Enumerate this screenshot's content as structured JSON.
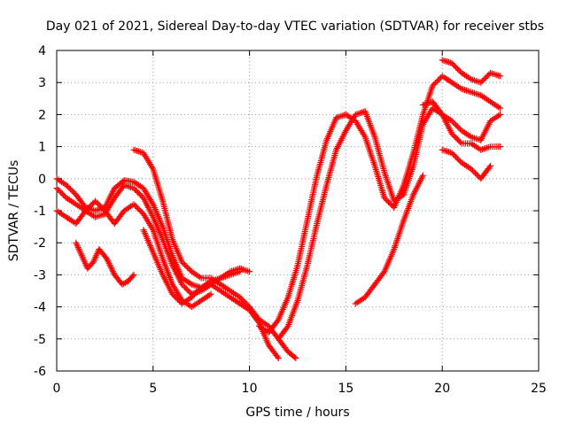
{
  "chart_data": {
    "type": "scatter",
    "title": "Day 021 of 2021, Sidereal Day-to-day VTEC variation (SDTVAR) for receiver stbs",
    "xlabel": "GPS time / hours",
    "ylabel": "SDTVAR / TECUs",
    "xlim": [
      0,
      25
    ],
    "ylim": [
      -6,
      4
    ],
    "xticks": [
      "0",
      "5",
      "10",
      "15",
      "20",
      "25"
    ],
    "yticks": [
      "-6",
      "-5",
      "-4",
      "-3",
      "-2",
      "-1",
      "0",
      "1",
      "2",
      "3",
      "4"
    ],
    "grid": true,
    "marker": "+",
    "color": "#ff0000",
    "series": [
      {
        "x": [
          0,
          0.5,
          1,
          1.5,
          2,
          2.5,
          3,
          3.5,
          4,
          4.5,
          5,
          5.5,
          6,
          6.5,
          7,
          7.5,
          8,
          8.5,
          9,
          9.5
        ],
        "y": [
          0,
          -0.2,
          -0.5,
          -0.9,
          -1.0,
          -0.9,
          -0.3,
          -0.05,
          -0.1,
          -0.3,
          -0.8,
          -1.5,
          -2.4,
          -3.1,
          -3.3,
          -3.4,
          -3.2,
          -3.1,
          -3.0,
          -2.9
        ]
      },
      {
        "x": [
          0,
          0.5,
          1,
          1.5,
          2,
          2.5,
          3,
          3.5,
          4,
          4.5,
          5,
          5.5,
          6,
          6.5,
          7,
          7.5,
          8,
          8.5,
          9,
          9.5,
          10
        ],
        "y": [
          -0.3,
          -0.6,
          -0.8,
          -1.0,
          -1.2,
          -1.1,
          -0.6,
          -0.2,
          -0.3,
          -0.6,
          -1.2,
          -1.9,
          -2.7,
          -3.3,
          -3.6,
          -3.5,
          -3.3,
          -3.1,
          -2.9,
          -2.8,
          -2.9
        ]
      },
      {
        "x": [
          0,
          0.5,
          1,
          1.5,
          2,
          2.5,
          3,
          3.5,
          4,
          4.5,
          5,
          5.5,
          6,
          6.5,
          7,
          7.5,
          8
        ],
        "y": [
          -1.0,
          -1.2,
          -1.4,
          -1.0,
          -0.7,
          -1.0,
          -1.4,
          -1.0,
          -0.8,
          -1.1,
          -1.6,
          -2.5,
          -3.3,
          -3.8,
          -4.0,
          -3.8,
          -3.6
        ]
      },
      {
        "x": [
          1.0,
          1.3,
          1.6,
          1.9,
          2.2,
          2.6,
          3.0,
          3.4,
          3.7,
          4.0
        ],
        "y": [
          -2.0,
          -2.4,
          -2.8,
          -2.6,
          -2.2,
          -2.5,
          -3.0,
          -3.3,
          -3.2,
          -3.0
        ]
      },
      {
        "x": [
          4.0,
          4.5,
          5,
          5.5,
          6,
          6.5,
          7,
          7.5,
          8,
          8.5,
          9,
          9.5,
          10,
          10.5,
          11,
          11.5,
          12,
          12.4
        ],
        "y": [
          0.9,
          0.8,
          0.3,
          -0.7,
          -1.9,
          -2.6,
          -2.9,
          -3.1,
          -3.1,
          -3.3,
          -3.5,
          -3.7,
          -4.0,
          -4.4,
          -4.6,
          -5.0,
          -5.4,
          -5.6
        ]
      },
      {
        "x": [
          4.5,
          5,
          5.5,
          6,
          6.5,
          7,
          7.5,
          8,
          8.5,
          9,
          9.5,
          10,
          10.5,
          11,
          11.5
        ],
        "y": [
          -1.6,
          -2.3,
          -3.0,
          -3.6,
          -3.9,
          -3.7,
          -3.4,
          -3.3,
          -3.5,
          -3.7,
          -3.9,
          -4.1,
          -4.5,
          -5.2,
          -5.6
        ]
      },
      {
        "x": [
          10.5,
          11,
          11.5,
          12,
          12.5,
          13,
          13.5,
          14,
          14.5,
          15,
          15.5,
          16,
          16.5,
          17,
          17.5,
          18,
          18.5,
          19,
          19.5,
          20,
          20.5,
          21,
          21.5,
          22,
          22.5,
          23
        ],
        "y": [
          -4.6,
          -4.8,
          -4.4,
          -3.7,
          -2.7,
          -1.3,
          0.1,
          1.2,
          1.9,
          2.0,
          1.8,
          1.3,
          0.4,
          -0.6,
          -0.9,
          -0.2,
          0.8,
          2.0,
          2.9,
          3.2,
          3.0,
          2.8,
          2.7,
          2.6,
          2.4,
          2.2
        ]
      },
      {
        "x": [
          11.5,
          12,
          12.5,
          13,
          13.5,
          14,
          14.5,
          15,
          15.5,
          16,
          16.5,
          17,
          17.5,
          18,
          18.5,
          19,
          19.5,
          20,
          20.5,
          21,
          21.5,
          22,
          22.5,
          23
        ],
        "y": [
          -5.0,
          -4.6,
          -3.8,
          -2.7,
          -1.4,
          -0.2,
          0.9,
          1.5,
          2.0,
          2.1,
          1.3,
          0.2,
          -0.7,
          -0.5,
          0.4,
          1.7,
          2.2,
          2.0,
          1.4,
          1.1,
          1.1,
          0.9,
          1.0,
          1.0
        ]
      },
      {
        "x": [
          15.5,
          16,
          16.5,
          17,
          17.5,
          18,
          18.5,
          19
        ],
        "y": [
          -3.9,
          -3.7,
          -3.3,
          -2.9,
          -2.2,
          -1.3,
          -0.5,
          0.1
        ]
      },
      {
        "x": [
          20.0,
          20.5,
          21,
          21.5,
          22,
          22.5
        ],
        "y": [
          0.9,
          0.8,
          0.5,
          0.3,
          0.0,
          0.4
        ]
      },
      {
        "x": [
          20.0,
          20.5,
          21,
          21.5,
          22,
          22.5,
          23
        ],
        "y": [
          3.7,
          3.6,
          3.3,
          3.1,
          3.0,
          3.3,
          3.2
        ]
      },
      {
        "x": [
          19.0,
          19.5,
          20.0,
          20.5,
          21,
          21.5,
          22,
          22.5,
          23
        ],
        "y": [
          2.3,
          2.4,
          2.0,
          1.8,
          1.5,
          1.3,
          1.2,
          1.8,
          2.0
        ]
      }
    ]
  }
}
